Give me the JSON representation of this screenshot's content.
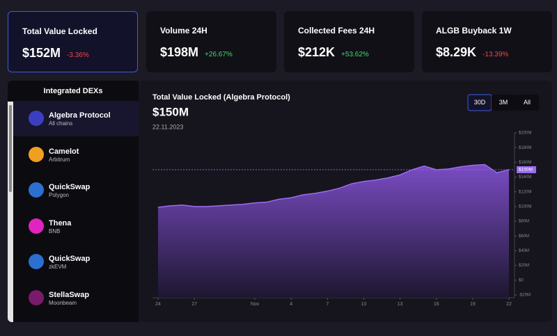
{
  "stats": [
    {
      "title": "Total Value Locked",
      "value": "$152M",
      "change": "-3.36%"
    },
    {
      "title": "Volume 24H",
      "value": "$198M",
      "change": "+26.67%"
    },
    {
      "title": "Collected Fees 24H",
      "value": "$212K",
      "change": "+53.62%"
    },
    {
      "title": "ALGB Buyback 1W",
      "value": "$8.29K",
      "change": "-13.39%"
    }
  ],
  "dex_panel": {
    "title": "Integrated DEXs",
    "items": [
      {
        "name": "Algebra Protocol",
        "chain": "All chains"
      },
      {
        "name": "Camelot",
        "chain": "Arbitrum"
      },
      {
        "name": "QuickSwap",
        "chain": "Polygon"
      },
      {
        "name": "Thena",
        "chain": "BNB"
      },
      {
        "name": "QuickSwap",
        "chain": "zkEVM"
      },
      {
        "name": "StellaSwap",
        "chain": "Moonbeam"
      }
    ]
  },
  "chart_data": {
    "type": "area",
    "title": "Total Value Locked (Algebra Protocol)",
    "headline": "$150M",
    "date": "22.11.2023",
    "range_buttons": [
      "30D",
      "3M",
      "All"
    ],
    "active_range": 0,
    "categories": [
      "24",
      null,
      null,
      "27",
      null,
      null,
      null,
      null,
      "Nov",
      null,
      null,
      "4",
      null,
      null,
      "7",
      null,
      null,
      "10",
      null,
      null,
      "13",
      null,
      null,
      "16",
      null,
      null,
      "19",
      null,
      null,
      "22"
    ],
    "values": [
      99,
      101,
      102,
      100,
      100,
      101,
      102,
      103,
      105,
      106,
      110,
      112,
      116,
      118,
      121,
      125,
      131,
      134,
      136,
      139,
      143,
      150,
      155,
      150,
      151,
      154,
      156,
      157,
      146,
      150
    ],
    "color": "#9b6cf2",
    "ylim": [
      -20,
      200
    ],
    "yticks": [
      {
        "value": 200,
        "label": "$200M"
      },
      {
        "value": 180,
        "label": "$180M"
      },
      {
        "value": 160,
        "label": "$160M"
      },
      {
        "value": 140,
        "label": "$140M"
      },
      {
        "value": 120,
        "label": "$120M"
      },
      {
        "value": 100,
        "label": "$100M"
      },
      {
        "value": 80,
        "label": "$80M"
      },
      {
        "value": 60,
        "label": "$60M"
      },
      {
        "value": 40,
        "label": "$40M"
      },
      {
        "value": 20,
        "label": "$20M"
      },
      {
        "value": 0,
        "label": "$0"
      },
      {
        "value": -20,
        "label": "-$20M"
      }
    ],
    "current_value": {
      "value": 150,
      "label": "$150M"
    }
  }
}
